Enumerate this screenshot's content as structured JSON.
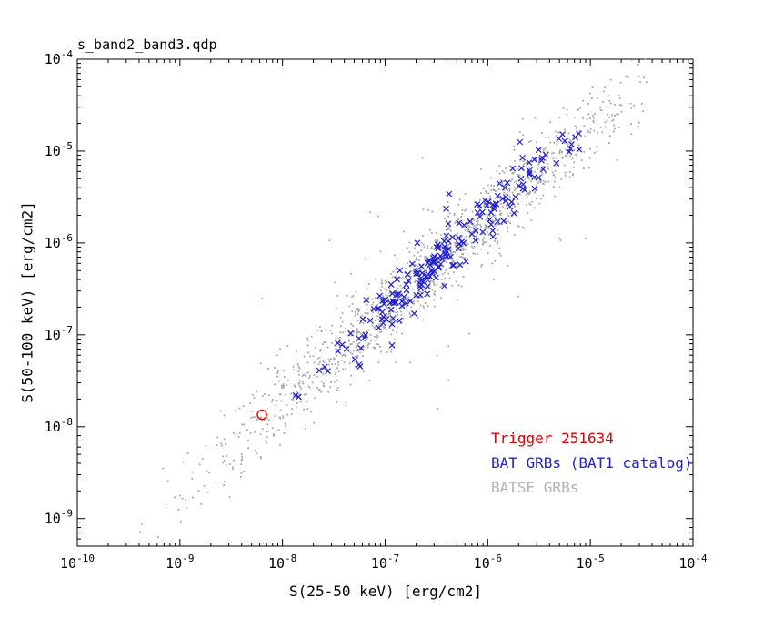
{
  "title": "s_band2_band3.qdp",
  "axes": {
    "xlabel": "S(25-50 keV) [erg/cm2]",
    "ylabel": "S(50-100 keV) [erg/cm2]",
    "x_exp_min": -10,
    "x_exp_max": -4,
    "y_exp_min": -9.3,
    "y_exp_max": -4,
    "x_tick_exps": [
      -10,
      -9,
      -8,
      -7,
      -6,
      -5,
      -4
    ],
    "y_tick_exps": [
      -9,
      -8,
      -7,
      -6,
      -5,
      -4
    ]
  },
  "legend": [
    {
      "label": "Trigger 251634",
      "color": "#e00000"
    },
    {
      "label": "BAT GRBs (BAT1 catalog)",
      "color": "#2020cc"
    },
    {
      "label": "BATSE GRBs",
      "color": "#b2b2b2"
    }
  ],
  "chart_data": {
    "type": "scatter",
    "title": "s_band2_band3.qdp",
    "xlabel": "S(25-50 keV) [erg/cm2]",
    "ylabel": "S(50-100 keV) [erg/cm2]",
    "xscale": "log",
    "yscale": "log",
    "xlim": [
      1e-10,
      0.0001
    ],
    "ylim": [
      5e-10,
      0.0001
    ],
    "grid": false,
    "legend_position": "lower-right",
    "series": [
      {
        "name": "BATSE GRBs",
        "marker": "dot",
        "color": "#a9a9a9",
        "count": 1400,
        "gen": {
          "seed": 251634,
          "logx_mean": -6.55,
          "logx_sd": 1.05,
          "logx_min": -9.7,
          "logx_max": -4.45,
          "offset": 0.28,
          "noise_sd": 0.22,
          "outlier_frac": 0.08,
          "outlier_sd": 0.6
        }
      },
      {
        "name": "BAT GRBs (BAT1 catalog)",
        "marker": "x",
        "color": "#2020cc",
        "count": 205,
        "gen": {
          "seed": 7741,
          "logx_mean": -6.35,
          "logx_sd": 0.7,
          "logx_min": -8.4,
          "logx_max": -5.05,
          "offset": 0.3,
          "noise_sd": 0.14,
          "outlier_frac": 0.05,
          "outlier_sd": 0.35
        }
      },
      {
        "name": "Trigger 251634",
        "marker": "open-circle",
        "color": "#e00000",
        "points": [
          [
            6.3e-09,
            1.35e-08
          ]
        ]
      }
    ]
  }
}
